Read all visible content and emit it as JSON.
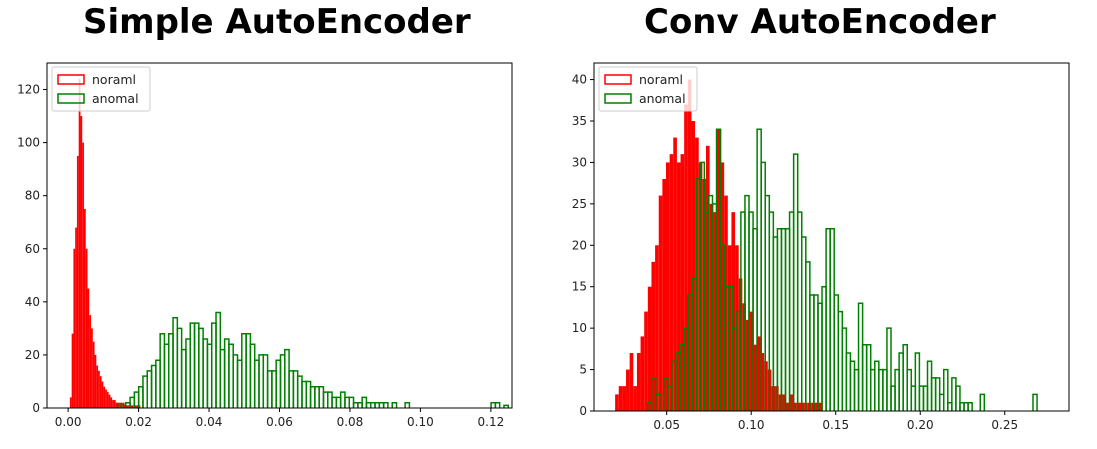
{
  "chart_data": [
    {
      "type": "histogram",
      "title": "Simple AutoEncoder",
      "xlabel": "",
      "ylabel": "",
      "xlim": [
        -0.006,
        0.126
      ],
      "ylim": [
        0,
        130
      ],
      "xticks": [
        0.0,
        0.02,
        0.04,
        0.06,
        0.08,
        0.1,
        0.12
      ],
      "xtick_labels": [
        "0.00",
        "0.02",
        "0.04",
        "0.06",
        "0.08",
        "0.10",
        "0.12"
      ],
      "yticks": [
        0,
        20,
        40,
        60,
        80,
        100,
        120
      ],
      "ytick_labels": [
        "0",
        "20",
        "40",
        "60",
        "80",
        "100",
        "120"
      ],
      "legend_position": "top-left",
      "series": [
        {
          "name": "noraml",
          "color": "#ff0000",
          "style": "filled",
          "bin_start": 0.0005,
          "bin_width": 0.0005,
          "values": [
            4,
            28,
            60,
            68,
            95,
            124,
            110,
            100,
            75,
            60,
            45,
            35,
            30,
            25,
            20,
            16,
            14,
            12,
            10,
            8,
            7,
            6,
            5,
            4,
            3,
            3,
            2,
            2,
            2,
            2,
            2,
            1,
            1,
            1,
            1,
            1,
            1,
            1,
            1,
            1
          ]
        },
        {
          "name": "anomal",
          "color": "#008000",
          "style": "step",
          "bin_start": 0.0005,
          "bin_width": 0.00122,
          "values": [
            0,
            0,
            0,
            0,
            0,
            0,
            0,
            0,
            0,
            0,
            0,
            1,
            1,
            2,
            4,
            6,
            8,
            12,
            14,
            16,
            18,
            28,
            24,
            28,
            34,
            30,
            22,
            26,
            32,
            32,
            30,
            26,
            24,
            32,
            36,
            22,
            26,
            24,
            20,
            18,
            28,
            28,
            24,
            18,
            20,
            20,
            14,
            14,
            18,
            20,
            22,
            14,
            14,
            12,
            10,
            10,
            8,
            8,
            8,
            6,
            6,
            4,
            4,
            6,
            4,
            4,
            2,
            2,
            4,
            2,
            2,
            2,
            2,
            2,
            0,
            2,
            0,
            0,
            2,
            0,
            0,
            0,
            0,
            0,
            0,
            0,
            0,
            0,
            0,
            0,
            0,
            0,
            0,
            0,
            0,
            0,
            0,
            0,
            2,
            2,
            0,
            1
          ]
        }
      ]
    },
    {
      "type": "histogram",
      "title": "Conv AutoEncoder",
      "xlabel": "",
      "ylabel": "",
      "xlim": [
        0.007,
        0.288
      ],
      "ylim": [
        0,
        42
      ],
      "xticks": [
        0.05,
        0.1,
        0.15,
        0.2,
        0.25
      ],
      "xtick_labels": [
        "0.05",
        "0.10",
        "0.15",
        "0.20",
        "0.25"
      ],
      "yticks": [
        0,
        5,
        10,
        15,
        20,
        25,
        30,
        35,
        40
      ],
      "ytick_labels": [
        "0",
        "5",
        "10",
        "15",
        "20",
        "25",
        "30",
        "35",
        "40"
      ],
      "legend_position": "top-left",
      "series": [
        {
          "name": "noraml",
          "color": "#ff0000",
          "style": "filled",
          "bin_start": 0.0195,
          "bin_width": 0.00215,
          "values": [
            2,
            3,
            3,
            5,
            7,
            3,
            7,
            9,
            12,
            15,
            18,
            20,
            26,
            28,
            30,
            31,
            33,
            30,
            31,
            37,
            40,
            35,
            33,
            30,
            28,
            32,
            25,
            24,
            34,
            30,
            26,
            20,
            24,
            20,
            16,
            13,
            11,
            12,
            8,
            9,
            7,
            6,
            5,
            3,
            3,
            2,
            2,
            1,
            2,
            1,
            1,
            1,
            1,
            1,
            1,
            1,
            1
          ]
        },
        {
          "name": "anomal",
          "color": "#008000",
          "style": "step",
          "bin_start": 0.0195,
          "bin_width": 0.0024,
          "values": [
            0,
            0,
            0,
            0,
            0,
            0,
            0,
            0,
            1,
            4,
            2,
            0,
            4,
            3,
            6,
            7,
            8,
            10,
            14,
            16,
            28,
            30,
            24,
            26,
            25,
            34,
            20,
            15,
            15,
            10,
            12,
            24,
            26,
            24,
            22,
            34,
            30,
            26,
            24,
            21,
            22,
            22,
            22,
            24,
            31,
            24,
            21,
            18,
            14,
            14,
            13,
            15,
            22,
            22,
            14,
            12,
            10,
            7,
            6,
            5,
            13,
            8,
            8,
            5,
            6,
            5,
            5,
            10,
            3,
            5,
            7,
            8,
            5,
            3,
            7,
            3,
            3,
            6,
            4,
            4,
            2,
            5,
            1,
            4,
            3,
            1,
            1,
            1,
            0,
            0,
            2,
            0,
            0,
            0,
            0,
            0,
            0,
            0,
            0,
            0,
            0,
            0,
            0,
            2,
            0,
            0,
            0,
            0,
            0,
            0,
            0
          ]
        }
      ]
    }
  ]
}
